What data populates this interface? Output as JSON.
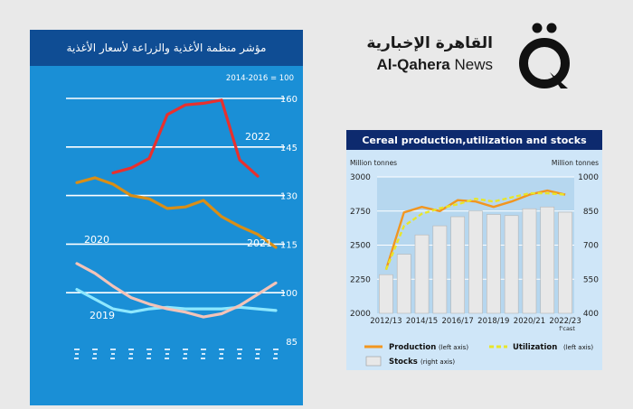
{
  "brand": {
    "name_ar": "القاهرة الإخبارية",
    "name_en_bold": "Al-Qahera",
    "name_en_rest": " News"
  },
  "chart_data": [
    {
      "type": "line",
      "title": "مؤشر منظمة الأغذية والزراعة لأسعار الأغذية",
      "index_note": "2014-2016 = 100",
      "yticks": [
        85,
        100,
        115,
        130,
        145,
        160
      ],
      "ylim": [
        85,
        160
      ],
      "x": [
        1,
        2,
        3,
        4,
        5,
        6,
        7,
        8,
        9,
        10,
        11,
        12
      ],
      "series": [
        {
          "name": "2019",
          "color": "#8ee8ff",
          "values": [
            101.0,
            98.0,
            95.0,
            94.0,
            95.0,
            95.5,
            95.0,
            95.0,
            95.0,
            95.5,
            95.0,
            94.5
          ]
        },
        {
          "name": "2020",
          "color": "#f3c3b8",
          "values": [
            109.0,
            106.0,
            102.0,
            98.5,
            96.5,
            95.0,
            94.0,
            92.5,
            93.5,
            96.0,
            99.5,
            103.0
          ]
        },
        {
          "name": "2021",
          "color": "#d98e16",
          "values": [
            134.0,
            135.5,
            133.5,
            130.0,
            129.0,
            126.0,
            126.5,
            128.5,
            123.5,
            120.5,
            118.0,
            114.0
          ]
        },
        {
          "name": "2022",
          "color": "#e8302e",
          "values": [
            null,
            null,
            137.0,
            138.5,
            141.5,
            155.0,
            158.0,
            158.5,
            159.5,
            141.0,
            136.0,
            null
          ]
        }
      ]
    },
    {
      "type": "bar+line",
      "title": "Cereal production,utilization and stocks",
      "left_unit": "Million tonnes",
      "right_unit": "Million tonnes",
      "categories": [
        "2012/13",
        "2013/14",
        "2014/15",
        "2015/16",
        "2016/17",
        "2017/18",
        "2018/19",
        "2019/20",
        "2020/21",
        "2021/22",
        "2022/23"
      ],
      "xtick_labels": [
        "2012/13",
        "2014/15",
        "2016/17",
        "2018/19",
        "2020/21",
        "2022/23"
      ],
      "xtick_note": "f'cast",
      "left_ylim": [
        2000,
        3000
      ],
      "left_yticks": [
        2000,
        2250,
        2500,
        2750,
        3000
      ],
      "right_ylim": [
        400,
        1000
      ],
      "right_yticks": [
        400,
        550,
        700,
        850,
        1000
      ],
      "series": [
        {
          "name": "Stocks",
          "axis": "right axis",
          "kind": "bar",
          "values": [
            570,
            660,
            745,
            785,
            825,
            850,
            835,
            830,
            860,
            868,
            845
          ]
        },
        {
          "name": "Production",
          "axis": "left axis",
          "kind": "line",
          "color": "#f29620",
          "values": [
            2320,
            2740,
            2780,
            2750,
            2830,
            2820,
            2780,
            2820,
            2870,
            2900,
            2870
          ]
        },
        {
          "name": "Utilization",
          "axis": "left axis",
          "kind": "dashed-line",
          "color": "#e8e62a",
          "values": [
            2320,
            2640,
            2730,
            2770,
            2800,
            2840,
            2820,
            2850,
            2880,
            2880,
            2870
          ]
        }
      ],
      "legend": [
        {
          "name": "Production",
          "note": "(left axis)"
        },
        {
          "name": "Utilization",
          "note": "(left axis)"
        },
        {
          "name": "Stocks",
          "note": "(right axis)"
        }
      ]
    }
  ]
}
